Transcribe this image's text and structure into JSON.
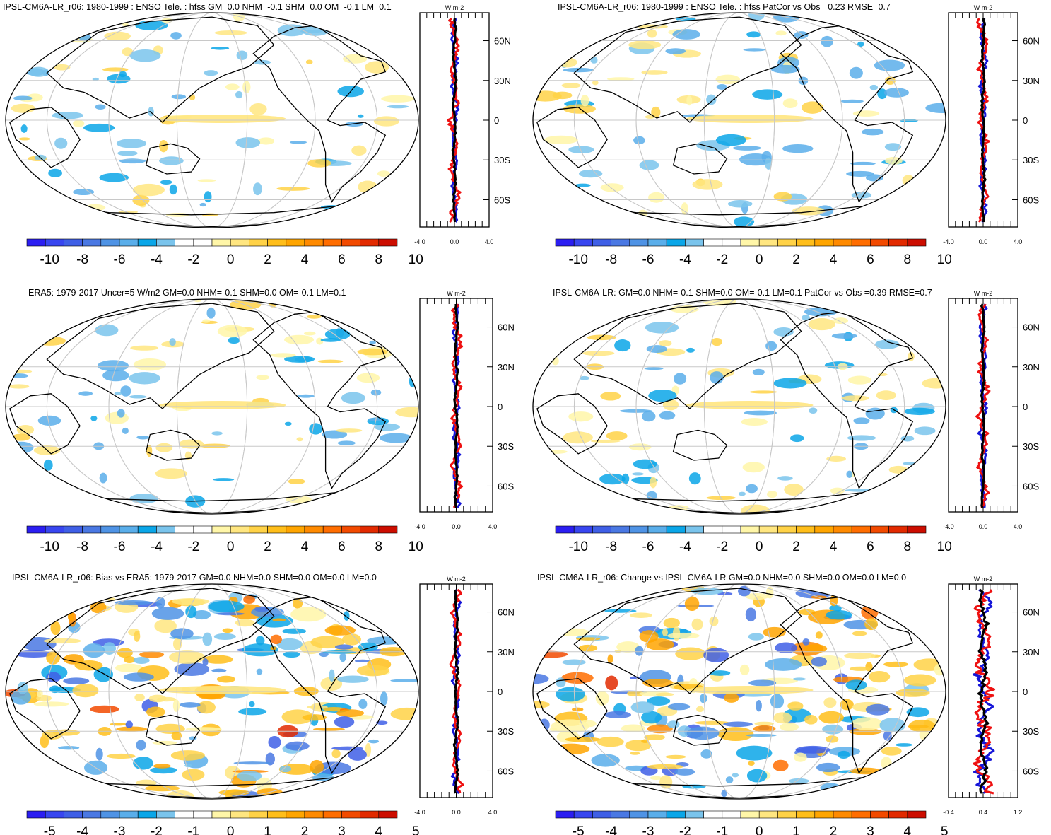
{
  "colors": {
    "scale11": [
      "#2b1ef2",
      "#3846f0",
      "#3f5fe6",
      "#4a78e3",
      "#4f93e5",
      "#5aaeea",
      "#0aa6e8",
      "#7ac4ec",
      "#ffffff",
      "#ffffff",
      "#fff6a8",
      "#ffe680",
      "#ffd247",
      "#ffbe1a",
      "#ffa500",
      "#ff8a00",
      "#ff6d00",
      "#f24a00",
      "#e22a00",
      "#cc0d00"
    ],
    "line_blue": "#1515d8",
    "line_red": "#ee1111",
    "line_black": "#000000"
  },
  "panels": [
    {
      "title": "IPSL-CM6A-LR_r06: 1980-1999 : ENSO Tele. : hfss GM=0.0 NHM=-0.1 SHM=0.0 OM=-0.1 LM=0.1",
      "colorbar_labels": [
        "-10",
        "-8",
        "-6",
        "-4",
        "-2",
        "0",
        "2",
        "4",
        "6",
        "8",
        "10"
      ],
      "profile_xlabels": [
        "-4.0",
        "0.0",
        "4.0"
      ],
      "profile_units": "W m-2",
      "lat_labels": [
        "60N",
        "30N",
        "0",
        "30S",
        "60S"
      ]
    },
    {
      "title": "IPSL-CM6A-LR_r06: 1980-1999 : ENSO Tele. : hfss PatCor vs Obs =0.23 RMSE=0.7",
      "colorbar_labels": [
        "-10",
        "-8",
        "-6",
        "-4",
        "-2",
        "0",
        "2",
        "4",
        "6",
        "8",
        "10"
      ],
      "profile_xlabels": [
        "-4.0",
        "0.0",
        "4.0"
      ],
      "profile_units": "W m-2",
      "lat_labels": [
        "60N",
        "30N",
        "0",
        "30S",
        "60S"
      ]
    },
    {
      "title": "ERA5: 1979-2017 Uncer=5 W/m2 GM=0.0 NHM=-0.1 SHM=0.0 OM=-0.1 LM=0.1",
      "colorbar_labels": [
        "-10",
        "-8",
        "-6",
        "-4",
        "-2",
        "0",
        "2",
        "4",
        "6",
        "8",
        "10"
      ],
      "profile_xlabels": [
        "-4.0",
        "0.0",
        "4.0"
      ],
      "profile_units": "W m-2",
      "lat_labels": [
        "60N",
        "30N",
        "0",
        "30S",
        "60S"
      ]
    },
    {
      "title": "IPSL-CM6A-LR: GM=0.0 NHM=-0.1 SHM=0.0 OM=-0.1 LM=0.1 PatCor vs Obs =0.39 RMSE=0.7",
      "colorbar_labels": [
        "-10",
        "-8",
        "-6",
        "-4",
        "-2",
        "0",
        "2",
        "4",
        "6",
        "8",
        "10"
      ],
      "profile_xlabels": [
        "-4.0",
        "0.0",
        "4.0"
      ],
      "profile_units": "W m-2",
      "lat_labels": [
        "60N",
        "30N",
        "0",
        "30S",
        "60S"
      ]
    },
    {
      "title": "IPSL-CM6A-LR_r06: Bias vs ERA5: 1979-2017 GM=0.0 NHM=0.0 SHM=0.0 OM=0.0 LM=0.0",
      "colorbar_labels": [
        "-5",
        "-4",
        "-3",
        "-2",
        "-1",
        "0",
        "1",
        "2",
        "3",
        "4",
        "5"
      ],
      "profile_xlabels": [
        "-4.0",
        "0.0",
        "4.0"
      ],
      "profile_units": "W m-2",
      "lat_labels": [
        "60N",
        "30N",
        "0",
        "30S",
        "60S"
      ]
    },
    {
      "title": "IPSL-CM6A-LR_r06: Change vs IPSL-CM6A-LR GM=0.0 NHM=0.0 SHM=0.0 OM=0.0 LM=0.0",
      "colorbar_labels": [
        "-5",
        "-4",
        "-3",
        "-2",
        "-1",
        "0",
        "1",
        "2",
        "3",
        "4",
        "5"
      ],
      "profile_xlabels": [
        "-0.4",
        "0.4",
        "1.2"
      ],
      "profile_units": "W m-2",
      "lat_labels": [
        "60N",
        "30N",
        "0",
        "30S",
        "60S"
      ]
    }
  ]
}
